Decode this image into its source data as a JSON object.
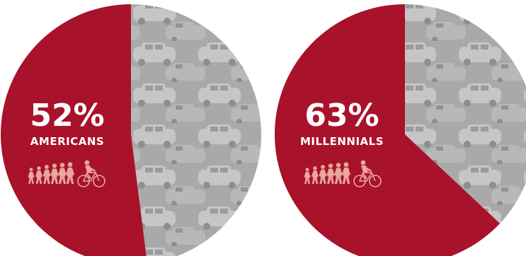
{
  "colors": {
    "accent": "#a8122a",
    "rest_bg": "#a9a9a9",
    "car_light": "#c6c6c6",
    "car_dark": "#8e8e8e",
    "figure": "#e8a89c"
  },
  "chart_data": [
    {
      "type": "pie",
      "slices": [
        {
          "label": "AMERICANS",
          "value": 52,
          "display": "52%",
          "color": "#a8122a"
        },
        {
          "label": "",
          "value": 48,
          "color": "car-pattern"
        }
      ]
    },
    {
      "type": "pie",
      "slices": [
        {
          "label": "MILLENNIALS",
          "value": 63,
          "display": "63%",
          "color": "#a8122a"
        },
        {
          "label": "",
          "value": 37,
          "color": "car-pattern"
        }
      ]
    }
  ]
}
